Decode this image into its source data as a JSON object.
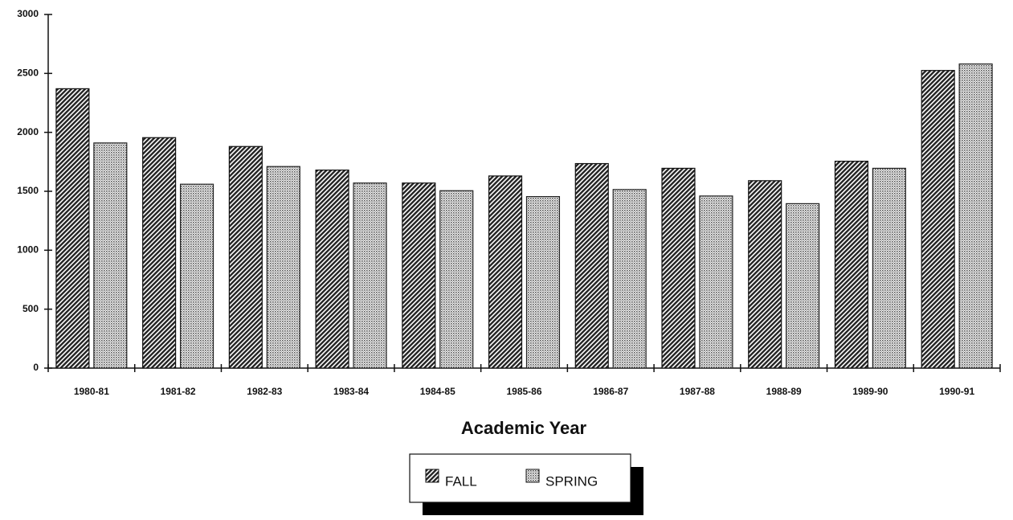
{
  "chart_data": {
    "type": "bar",
    "xlabel": "Academic Year",
    "categories": [
      "1980-81",
      "1981-82",
      "1982-83",
      "1983-84",
      "1984-85",
      "1985-86",
      "1986-87",
      "1987-88",
      "1988-89",
      "1989-90",
      "1990-91"
    ],
    "series": [
      {
        "name": "FALL",
        "color": "#333333",
        "values": [
          2370,
          1955,
          1880,
          1680,
          1570,
          1630,
          1735,
          1695,
          1590,
          1755,
          2525
        ]
      },
      {
        "name": "SPRING",
        "color": "#bbbbbb",
        "values": [
          1910,
          1560,
          1710,
          1570,
          1505,
          1455,
          1515,
          1460,
          1395,
          1695,
          2580
        ]
      }
    ],
    "ylim": [
      0,
      3000
    ],
    "yticks": [
      0,
      500,
      1000,
      1500,
      2000,
      2500,
      3000
    ],
    "grid": false,
    "legend": "bottom"
  }
}
